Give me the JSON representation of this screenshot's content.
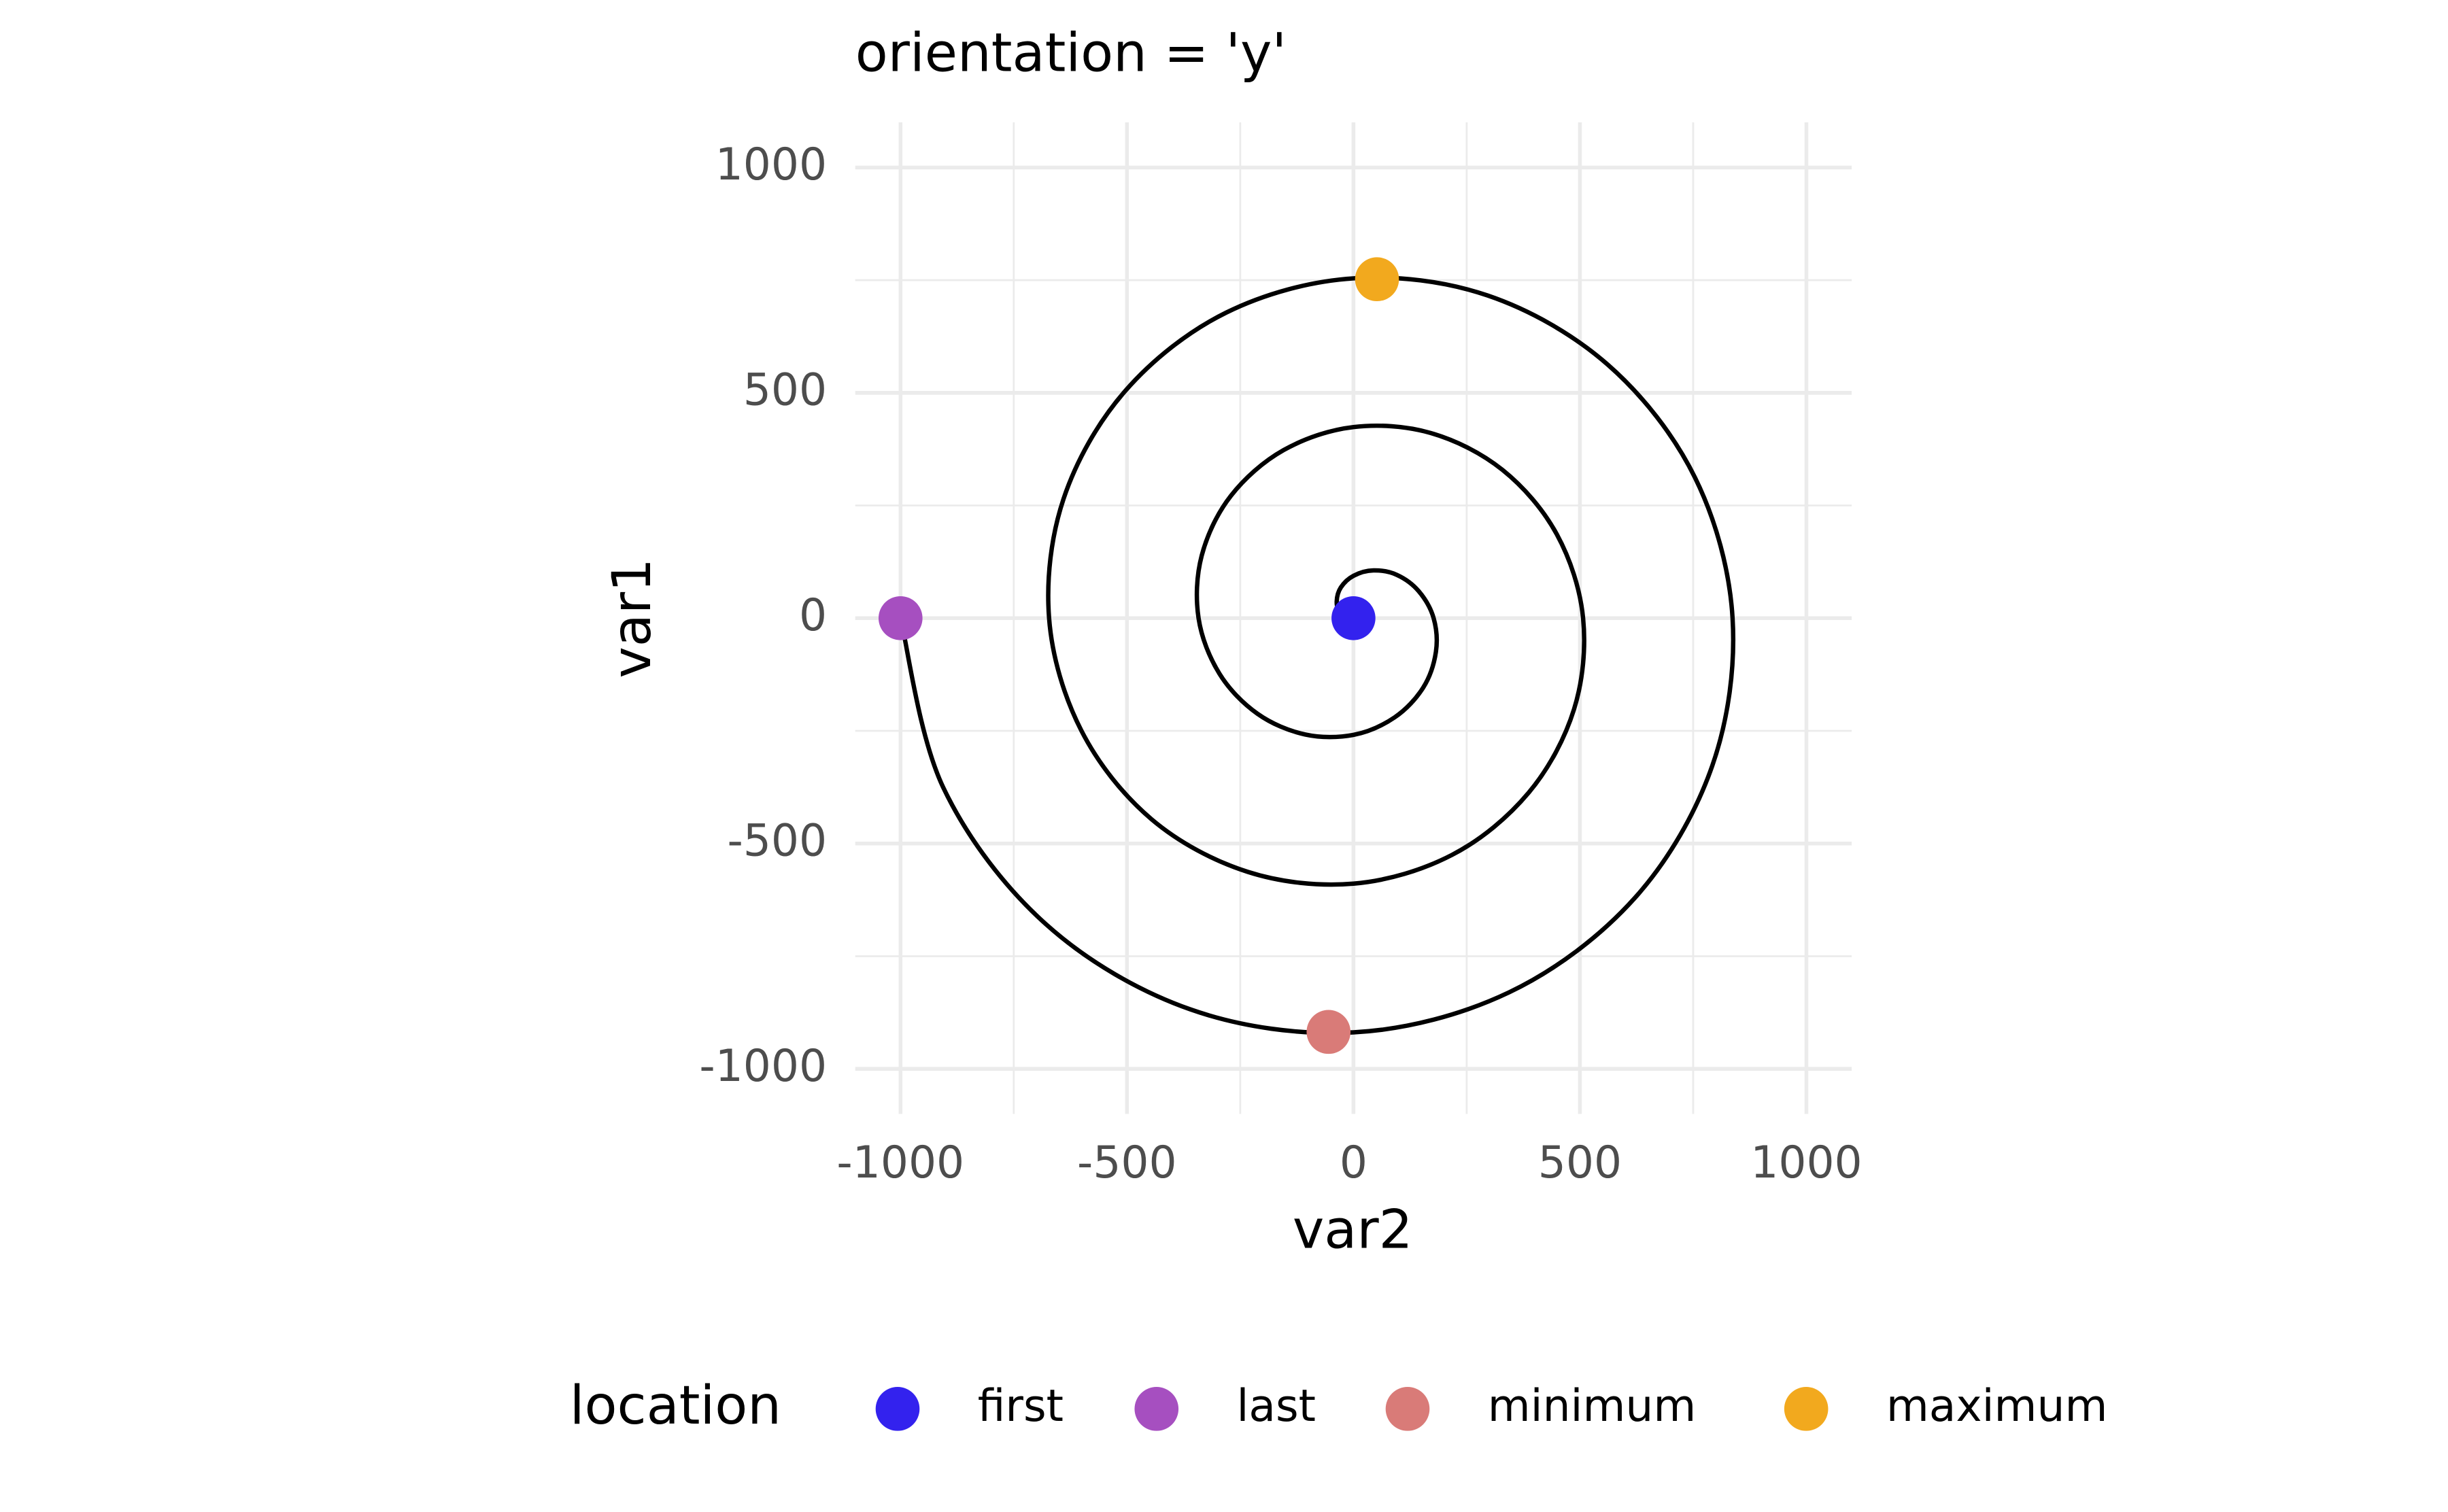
{
  "chart_data": {
    "type": "path",
    "title": "orientation = 'y'",
    "x_label": "var2",
    "y_label": "var1",
    "xlim": [
      -1100,
      1100
    ],
    "ylim": [
      -1100,
      1100
    ],
    "xticks": [
      -1000,
      -500,
      0,
      500,
      1000
    ],
    "yticks": [
      -1000,
      -500,
      0,
      500,
      1000
    ],
    "x_minor_grid": [
      -750,
      -250,
      250,
      750
    ],
    "y_minor_grid": [
      -750,
      -250,
      250,
      750
    ],
    "grid": true,
    "line": {
      "color": "#000000",
      "x": [
        0,
        -12,
        -30,
        -37,
        -28,
        0,
        44,
        96,
        144,
        177,
        182,
        154,
        91,
        0,
        -107,
        -212,
        -296,
        -342,
        -335,
        -271,
        -154,
        0,
        170,
        329,
        449,
        507,
        487,
        387,
        218,
        0,
        -233,
        -446,
        -601,
        -672,
        -640,
        -504,
        -281,
        0,
        296,
        562,
        754,
        837,
        792,
        621,
        344,
        0,
        -360,
        -679,
        -906,
        -1000
      ],
      "y": [
        0,
        0,
        12,
        37,
        68,
        94,
        106,
        96,
        60,
        0,
        -75,
        -154,
        -220,
        -259,
        -258,
        -212,
        -123,
        0,
        139,
        271,
        373,
        424,
        411,
        329,
        186,
        0,
        -202,
        -387,
        -525,
        -589,
        -563,
        -446,
        -249,
        0,
        265,
        504,
        678,
        754,
        716,
        562,
        312,
        0,
        -328,
        -621,
        -830,
        -919,
        -868,
        -679,
        -375,
        0
      ]
    },
    "points": {
      "legend_title": "location",
      "legend_position": "bottom",
      "series": [
        {
          "name": "first",
          "color": "#3322ee",
          "x": [
            0
          ],
          "y": [
            0
          ]
        },
        {
          "name": "last",
          "color": "#a64fc0",
          "x": [
            -1000
          ],
          "y": [
            0
          ]
        },
        {
          "name": "minimum",
          "color": "#d97b78",
          "x": [
            -55
          ],
          "y": [
            -918
          ]
        },
        {
          "name": "maximum",
          "color": "#f2a91e",
          "x": [
            52
          ],
          "y": [
            752
          ]
        }
      ]
    }
  }
}
